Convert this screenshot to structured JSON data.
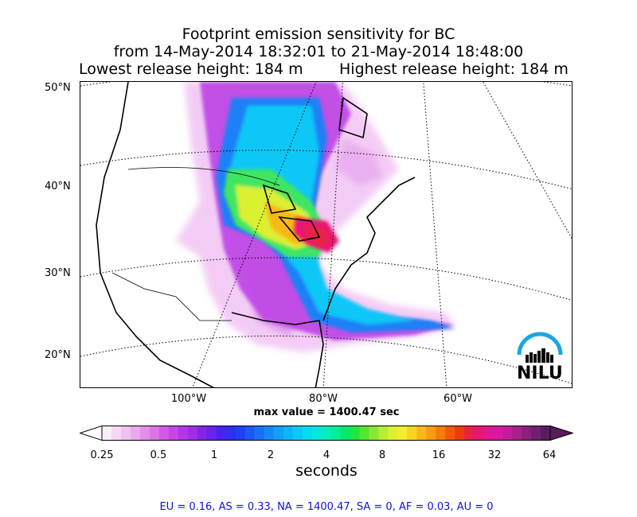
{
  "title": {
    "line1": "Footprint emission sensitivity for BC",
    "line2": "from 14-May-2014 18:32:01 to 21-May-2014 18:48:00",
    "lowest": "Lowest release height: 184 m",
    "highest": "Highest release height: 184 m"
  },
  "map": {
    "lat_labels": [
      "50°N",
      "40°N",
      "30°N",
      "20°N"
    ],
    "lon_labels": [
      "100°W",
      "80°W",
      "60°W"
    ],
    "max_value_text": "max value = 1400.47 sec"
  },
  "colorbar": {
    "ticks": [
      "0.25",
      "0.5",
      "1",
      "2",
      "4",
      "8",
      "16",
      "32",
      "64"
    ],
    "unit": "seconds",
    "colors": [
      "#fbeefb",
      "#f6d8f6",
      "#f0c0f2",
      "#eaa8ef",
      "#e48eeb",
      "#dc74e8",
      "#d25ae6",
      "#c646e6",
      "#b636e6",
      "#a02ce8",
      "#8424ea",
      "#6a22ee",
      "#4c22f2",
      "#2e2ef4",
      "#2040f4",
      "#1c58f4",
      "#1870f6",
      "#1488f6",
      "#10a0f6",
      "#0cb6f6",
      "#08caf6",
      "#00dcf0",
      "#00e8dc",
      "#00eebe",
      "#00ee98",
      "#00ea6c",
      "#20e640",
      "#54e630",
      "#88ea30",
      "#b8ee30",
      "#dcf030",
      "#f4ee28",
      "#f8d420",
      "#f8b818",
      "#f89c10",
      "#f67c0c",
      "#f25808",
      "#ee3a0c",
      "#ea2044",
      "#ea1474",
      "#e41494",
      "#d818a4",
      "#c21c9e",
      "#a8208e",
      "#8c2080",
      "#702070",
      "#5a1c5e"
    ]
  },
  "summary": "EU = 0.16,  AS = 0.33,  NA = 1400.47,  SA = 0,  AF = 0.03,  AU = 0",
  "logo": {
    "text": "NILU",
    "arc_color": "#18a6e0"
  }
}
